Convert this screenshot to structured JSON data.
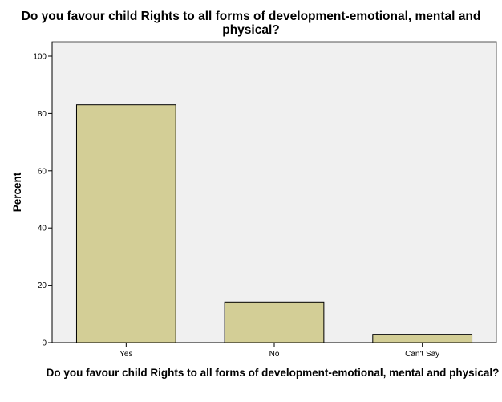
{
  "chart_data": {
    "type": "bar",
    "title": "Do you favour child Rights to all forms of development-emotional, mental and physical?",
    "xlabel": "Do you favour child Rights to all forms of development-emotional, mental and physical?",
    "ylabel": "Percent",
    "categories": [
      "Yes",
      "No",
      "Can't Say"
    ],
    "values": [
      83,
      14.2,
      2.9
    ],
    "ylim": [
      0,
      100
    ],
    "yticks": [
      "0",
      "20",
      "40",
      "60",
      "80",
      "100"
    ],
    "grid": false,
    "colors": {
      "plot_background": "#f0f0f0",
      "bar_fill": "#d3ce96",
      "bar_stroke": "#000000"
    }
  }
}
